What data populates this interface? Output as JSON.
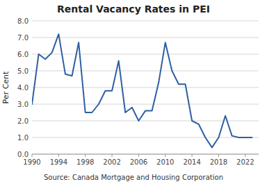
{
  "chart_data": {
    "type": "line",
    "title": "Rental Vacancy Rates in PEI",
    "ylabel": "Per Cent",
    "source": "Source:  Canada Mortgage and Housing Corporation",
    "x": [
      1990,
      1991,
      1992,
      1993,
      1994,
      1995,
      1996,
      1997,
      1998,
      1999,
      2000,
      2001,
      2002,
      2003,
      2004,
      2005,
      2006,
      2007,
      2008,
      2009,
      2010,
      2011,
      2012,
      2013,
      2014,
      2015,
      2016,
      2017,
      2018,
      2019,
      2020,
      2021,
      2022,
      2023
    ],
    "values": [
      3.0,
      6.0,
      5.7,
      6.1,
      7.2,
      4.8,
      4.7,
      6.7,
      2.5,
      2.5,
      3.0,
      3.8,
      3.8,
      5.6,
      2.5,
      2.8,
      2.0,
      2.6,
      2.6,
      4.3,
      6.7,
      5.0,
      4.2,
      4.2,
      2.0,
      1.8,
      1.0,
      0.4,
      1.0,
      2.3,
      1.1,
      1.0,
      1.0,
      1.0
    ],
    "color": "#2E5FA3",
    "xlim": [
      1990,
      2024
    ],
    "xticks": [
      1990,
      1994,
      1998,
      2002,
      2006,
      2010,
      2014,
      2018,
      2022
    ],
    "ylim": [
      0,
      8
    ],
    "yticks": [
      {
        "value": 0,
        "label": "0.0"
      },
      {
        "value": 1,
        "label": "1.0"
      },
      {
        "value": 2,
        "label": "2.0"
      },
      {
        "value": 3,
        "label": "3.0"
      },
      {
        "value": 4,
        "label": "4.0"
      },
      {
        "value": 5,
        "label": "5.0"
      },
      {
        "value": 6,
        "label": "6.0"
      },
      {
        "value": 7,
        "label": "7.0"
      },
      {
        "value": 8,
        "label": "8.0"
      }
    ],
    "grid": true
  }
}
